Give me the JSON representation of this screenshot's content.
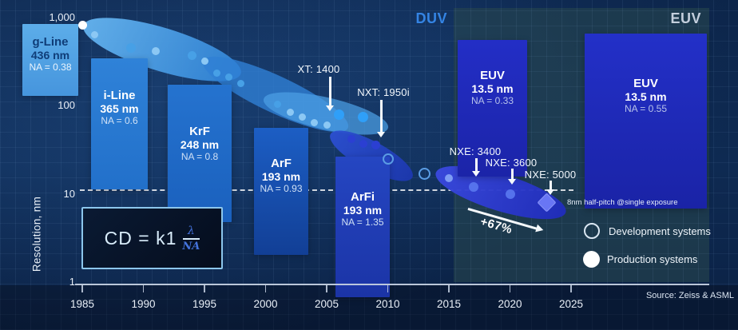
{
  "regions": {
    "duv": "DUV",
    "euv": "EUV"
  },
  "source": "Source: Zeiss & ASML",
  "axes": {
    "y_title": "Resolution, nm",
    "y_ticks": [
      {
        "nm": 1000,
        "label": "1,000"
      },
      {
        "nm": 100,
        "label": "100"
      },
      {
        "nm": 10,
        "label": "10"
      },
      {
        "nm": 1,
        "label": "1"
      }
    ]
  },
  "formula": {
    "text": "CD = k1 λ/NA",
    "main": "CD = k1",
    "numerator": "λ",
    "denominator": "NA"
  },
  "tech_boxes": [
    {
      "title": "g-Line",
      "wavelength": "436 nm",
      "na": "NA = 0.38"
    },
    {
      "title": "i-Line",
      "wavelength": "365 nm",
      "na": "NA = 0.6"
    },
    {
      "title": "KrF",
      "wavelength": "248 nm",
      "na": "NA = 0.8"
    },
    {
      "title": "ArF",
      "wavelength": "193 nm",
      "na": "NA = 0.93"
    },
    {
      "title": "ArFi",
      "wavelength": "193 nm",
      "na": "NA = 1.35"
    },
    {
      "title": "EUV",
      "wavelength": "13.5 nm",
      "na": "NA = 0.33"
    },
    {
      "title": "EUV",
      "wavelength": "13.5 nm",
      "na": "NA = 0.55"
    }
  ],
  "callouts": [
    {
      "label": "XT: 1400",
      "target": {
        "year": 2006,
        "nm": 80
      }
    },
    {
      "label": "NXT: 1950i",
      "target": {
        "year": 2009,
        "nm": 36
      }
    },
    {
      "label": "NXE: 3400",
      "target": {
        "year": 2017,
        "nm": 12
      }
    },
    {
      "label": "NXE: 3600",
      "target": {
        "year": 2020,
        "nm": 10
      }
    },
    {
      "label": "NXE: 5000",
      "target": {
        "year": 2023,
        "nm": 8
      }
    }
  ],
  "annotations": {
    "half_pitch": "8nm half-pitch @single exposure",
    "improvement": "+67%"
  },
  "legend": {
    "development": "Development systems",
    "production": "Production systems"
  },
  "palette": {
    "white": "#ffffff",
    "light": "#8cc8f4",
    "mid": "#47a0e6",
    "bright": "#2f9ff8",
    "indigo": "#2b3fd2",
    "euv_light": "#7e9cf4",
    "euv": "#5572ec",
    "dev_stroke": "#5a9ce4",
    "diamond": "#6976f4",
    "accent_duv": "#3484e4",
    "accent_euv": "#c3cedd"
  },
  "chart_data": {
    "type": "scatter",
    "title": "Lithography resolution roadmap",
    "xlabel": "",
    "ylabel": "Resolution, nm",
    "x_ticks": [
      1985,
      1990,
      1995,
      2000,
      2005,
      2010,
      2015,
      2020,
      2025
    ],
    "y_scale": "log",
    "ylim": [
      1,
      1000
    ],
    "reference_line_nm": 10,
    "series": [
      {
        "name": "Production systems",
        "marker": "filled-circle",
        "points": [
          {
            "year": 1985,
            "nm": 830,
            "tone": "white",
            "size": 11
          },
          {
            "year": 1986,
            "nm": 640,
            "tone": "light",
            "size": 9
          },
          {
            "year": 1989,
            "nm": 450,
            "tone": "mid",
            "size": 12
          },
          {
            "year": 1991,
            "nm": 420,
            "tone": "light",
            "size": 10
          },
          {
            "year": 1994,
            "nm": 370,
            "tone": "mid",
            "size": 11
          },
          {
            "year": 1995,
            "nm": 320,
            "tone": "light",
            "size": 9
          },
          {
            "year": 1996,
            "nm": 235,
            "tone": "mid",
            "size": 9
          },
          {
            "year": 1997,
            "nm": 210,
            "tone": "mid",
            "size": 9
          },
          {
            "year": 1998,
            "nm": 180,
            "tone": "mid",
            "size": 9
          },
          {
            "year": 2001,
            "nm": 103,
            "tone": "mid",
            "size": 9
          },
          {
            "year": 2002,
            "nm": 84,
            "tone": "light",
            "size": 9
          },
          {
            "year": 2003,
            "nm": 75,
            "tone": "light",
            "size": 9
          },
          {
            "year": 2004,
            "nm": 65,
            "tone": "light",
            "size": 9
          },
          {
            "year": 2005,
            "nm": 60,
            "tone": "light",
            "size": 9
          },
          {
            "year": 2006,
            "nm": 80,
            "tone": "bright",
            "size": 13
          },
          {
            "year": 2008,
            "nm": 74,
            "tone": "bright",
            "size": 13
          },
          {
            "year": 2007,
            "nm": 42,
            "tone": "indigo",
            "size": 10
          },
          {
            "year": 2008,
            "nm": 37,
            "tone": "indigo",
            "size": 10
          },
          {
            "year": 2009,
            "nm": 36,
            "tone": "indigo",
            "size": 11
          },
          {
            "year": 2015,
            "nm": 15,
            "tone": "euv_light",
            "size": 10
          },
          {
            "year": 2017,
            "nm": 12,
            "tone": "euv",
            "size": 12
          },
          {
            "year": 2020,
            "nm": 10,
            "tone": "euv",
            "size": 12
          }
        ]
      },
      {
        "name": "Development systems",
        "marker": "open-circle",
        "points": [
          {
            "year": 2010,
            "nm": 25,
            "size": 14
          },
          {
            "year": 2013,
            "nm": 17,
            "size": 15
          }
        ]
      },
      {
        "name": "8nm half-pitch @single exposure",
        "marker": "diamond",
        "points": [
          {
            "year": 2023,
            "nm": 8,
            "tone": "diamond",
            "size": 17
          }
        ]
      }
    ]
  }
}
